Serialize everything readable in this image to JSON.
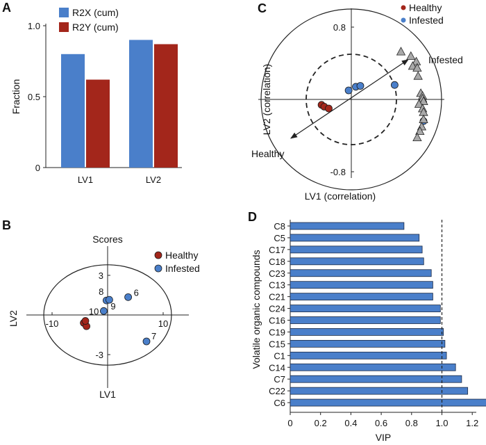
{
  "colors": {
    "blue": "#4a7fca",
    "red": "#a3261b",
    "grey": "#a9a9a9",
    "bar_outline": "#1c2a44"
  },
  "chart_data": [
    {
      "panel": "A",
      "type": "bar",
      "categories": [
        "LV1",
        "LV2"
      ],
      "series": [
        {
          "name": "R2X (cum)",
          "values": [
            0.8,
            0.9
          ],
          "color": "#4a7fca"
        },
        {
          "name": "R2Y (cum)",
          "values": [
            0.62,
            0.87
          ],
          "color": "#a3261b"
        }
      ],
      "ylabel": "Fraction",
      "yticks": [
        "0",
        "0.5",
        "1.0"
      ],
      "ylim": [
        0,
        1.0
      ],
      "legend": "top-left"
    },
    {
      "panel": "B",
      "type": "scatter",
      "title": "Scores",
      "xlabel": "LV1",
      "ylabel": "LV2",
      "xticks": [
        "-10",
        "10"
      ],
      "yticks": [
        "3",
        "-3"
      ],
      "xlim": [
        -12,
        12
      ],
      "ylim": [
        -4,
        4
      ],
      "ellipse": {
        "rx": 11.5,
        "ry": 3.8
      },
      "series": [
        {
          "name": "Healthy",
          "color": "#a3261b",
          "points": [
            {
              "x": -4.3,
              "y": -0.6,
              "label": ""
            },
            {
              "x": -3.8,
              "y": -0.85,
              "label": ""
            },
            {
              "x": -4.0,
              "y": -0.45,
              "label": ""
            }
          ]
        },
        {
          "name": "Infested",
          "color": "#4a7fca",
          "points": [
            {
              "x": -0.7,
              "y": 0.3,
              "label": "10"
            },
            {
              "x": -0.2,
              "y": 1.1,
              "label": "8"
            },
            {
              "x": 0.3,
              "y": 1.15,
              "label": "9"
            },
            {
              "x": 3.7,
              "y": 1.35,
              "label": "6"
            },
            {
              "x": 7.0,
              "y": -2.0,
              "label": "7"
            }
          ]
        }
      ],
      "legend": "top-right"
    },
    {
      "panel": "C",
      "type": "scatter",
      "xlabel": "LV1 (correlation)",
      "ylabel": "LV2 (correlation)",
      "yticks": [
        "0.8",
        "-0.8"
      ],
      "xlim": [
        -1.0,
        1.0
      ],
      "ylim": [
        -1.0,
        1.0
      ],
      "circles": [
        1.0,
        0.5
      ],
      "series": [
        {
          "name": "Healthy",
          "color": "#a3261b",
          "points": [
            {
              "x": -0.33,
              "y": -0.06
            },
            {
              "x": -0.3,
              "y": -0.08
            },
            {
              "x": -0.25,
              "y": -0.1
            }
          ]
        },
        {
          "name": "Infested",
          "color": "#4a7fca",
          "points": [
            {
              "x": -0.03,
              "y": 0.1
            },
            {
              "x": 0.05,
              "y": 0.14
            },
            {
              "x": 0.1,
              "y": 0.15
            },
            {
              "x": 0.48,
              "y": 0.16
            },
            {
              "x": 0.8,
              "y": -0.24
            }
          ]
        },
        {
          "name": "",
          "color": "#a9a9a9",
          "marker": "triangle",
          "points": [
            {
              "x": 0.55,
              "y": 0.53
            },
            {
              "x": 0.66,
              "y": 0.48
            },
            {
              "x": 0.72,
              "y": 0.42
            },
            {
              "x": 0.68,
              "y": 0.37
            },
            {
              "x": 0.73,
              "y": 0.35
            },
            {
              "x": 0.74,
              "y": 0.26
            },
            {
              "x": 0.77,
              "y": 0.07
            },
            {
              "x": 0.79,
              "y": 0.04
            },
            {
              "x": 0.79,
              "y": 0.01
            },
            {
              "x": 0.8,
              "y": -0.02
            },
            {
              "x": 0.75,
              "y": -0.05
            },
            {
              "x": 0.79,
              "y": -0.1
            },
            {
              "x": 0.8,
              "y": -0.14
            },
            {
              "x": 0.8,
              "y": -0.22
            },
            {
              "x": 0.78,
              "y": -0.3
            },
            {
              "x": 0.76,
              "y": -0.35
            },
            {
              "x": 0.73,
              "y": -0.42
            }
          ]
        }
      ],
      "arrow": {
        "from": [
          -0.67,
          -0.43
        ],
        "to": [
          0.63,
          0.44
        ],
        "labels": [
          "Healthy",
          "Infested"
        ]
      },
      "legend": "top-right"
    },
    {
      "panel": "D",
      "type": "bar",
      "orientation": "horizontal",
      "categories": [
        "C8",
        "C5",
        "C17",
        "C18",
        "C23",
        "C13",
        "C21",
        "C24",
        "C16",
        "C19",
        "C15",
        "C1",
        "C14",
        "C7",
        "C22",
        "C6"
      ],
      "values": [
        0.75,
        0.85,
        0.87,
        0.88,
        0.93,
        0.94,
        0.94,
        0.99,
        0.99,
        1.01,
        1.02,
        1.03,
        1.09,
        1.13,
        1.17,
        1.31
      ],
      "xlabel": "VIP",
      "ylabel": "Volatile organic compounds",
      "xticks": [
        "0",
        "0.2",
        "0.4",
        "0.6",
        "0.8",
        "1.0",
        "1.2"
      ],
      "xlim": [
        0,
        1.35
      ],
      "threshold": 1.0,
      "color": "#4a7fca"
    }
  ]
}
